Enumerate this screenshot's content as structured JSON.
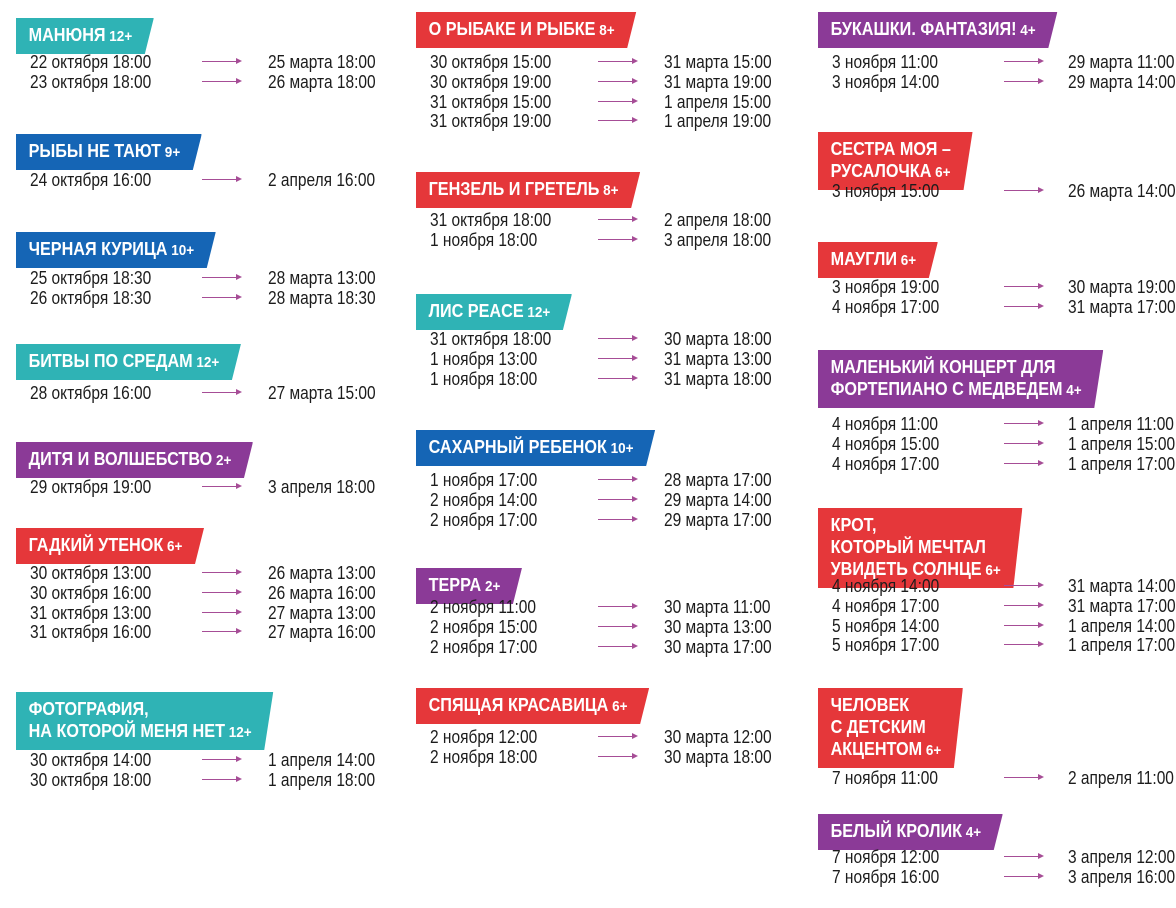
{
  "colors": {
    "teal": "#2fb3b5",
    "blue": "#1565b5",
    "purple": "#8b3a97",
    "red": "#e5373a",
    "arrow": "#a64d96"
  },
  "columns": [
    {
      "shows": [
        {
          "title": [
            "МАНЮНЯ"
          ],
          "age": "12+",
          "color": "teal",
          "rows": [
            [
              "22 октября 18:00",
              "25 марта 18:00"
            ],
            [
              "23 октября 18:00",
              "26 марта 18:00"
            ]
          ]
        },
        {
          "title": [
            "РЫБЫ НЕ ТАЮТ"
          ],
          "age": "9+",
          "color": "blue",
          "rows": [
            [
              "24 октября 16:00",
              "2 апреля 16:00"
            ]
          ]
        },
        {
          "title": [
            "ЧЕРНАЯ КУРИЦА"
          ],
          "age": "10+",
          "color": "blue",
          "rows": [
            [
              "25 октября 18:30",
              "28 марта 13:00"
            ],
            [
              "26 октября 18:30",
              "28 марта 18:30"
            ]
          ]
        },
        {
          "title": [
            "БИТВЫ ПО СРЕДАМ"
          ],
          "age": "12+",
          "color": "teal",
          "rows": [
            [
              "28 октября 16:00",
              "27 марта 15:00"
            ]
          ]
        },
        {
          "title": [
            "ДИТЯ И ВОЛШЕБСТВО"
          ],
          "age": "2+",
          "color": "purple",
          "rows": [
            [
              "29 октября 19:00",
              "3 апреля 18:00"
            ]
          ]
        },
        {
          "title": [
            "ГАДКИЙ УТЕНОК"
          ],
          "age": "6+",
          "color": "red",
          "rows": [
            [
              "30 октября 13:00",
              "26 марта 13:00"
            ],
            [
              "30 октября 16:00",
              "26 марта 16:00"
            ],
            [
              "31 октября 13:00",
              "27 марта 13:00"
            ],
            [
              "31 октября 16:00",
              "27 марта 16:00"
            ]
          ]
        },
        {
          "title": [
            "ФОТОГРАФИЯ,",
            "НА КОТОРОЙ  МЕНЯ НЕТ"
          ],
          "age": "12+",
          "color": "teal",
          "rows": [
            [
              "30 октября 14:00",
              "1 апреля 14:00"
            ],
            [
              "30 октября 18:00",
              "1 апреля 18:00"
            ]
          ]
        }
      ]
    },
    {
      "shows": [
        {
          "title": [
            "О РЫБАКЕ И РЫБКЕ"
          ],
          "age": "8+",
          "color": "red",
          "rows": [
            [
              "30 октября 15:00",
              "31 марта 15:00"
            ],
            [
              "30 октября 19:00",
              "31 марта 19:00"
            ],
            [
              "31 октября 15:00",
              "1 апреля 15:00"
            ],
            [
              "31 октября 19:00",
              "1 апреля 19:00"
            ]
          ]
        },
        {
          "title": [
            "ГЕНЗЕЛЬ И ГРЕТЕЛЬ"
          ],
          "age": "8+",
          "color": "red",
          "rows": [
            [
              "31 октября 18:00",
              "2 апреля 18:00"
            ],
            [
              "1 ноября 18:00",
              "3 апреля 18:00"
            ]
          ]
        },
        {
          "title": [
            "ЛИС PEACE"
          ],
          "age": "12+",
          "color": "teal",
          "rows": [
            [
              "31 октября 18:00",
              "30 марта 18:00"
            ],
            [
              "1 ноября 13:00",
              "31 марта 13:00"
            ],
            [
              "1 ноября 18:00",
              "31 марта 18:00"
            ]
          ]
        },
        {
          "title": [
            "САХАРНЫЙ РЕБЕНОК"
          ],
          "age": "10+",
          "color": "blue",
          "rows": [
            [
              "1 ноября 17:00",
              "28 марта 17:00"
            ],
            [
              "2 ноября 14:00",
              "29 марта 14:00"
            ],
            [
              "2 ноября 17:00",
              "29 марта 17:00"
            ]
          ]
        },
        {
          "title": [
            "ТЕРРА"
          ],
          "age": "2+",
          "color": "purple",
          "rows": [
            [
              "2 ноября 11:00",
              "30 марта 11:00"
            ],
            [
              "2 ноября 15:00",
              "30 марта 13:00"
            ],
            [
              "2 ноября 17:00",
              "30 марта 17:00"
            ]
          ]
        },
        {
          "title": [
            "СПЯЩАЯ КРАСАВИЦА"
          ],
          "age": "6+",
          "color": "red",
          "rows": [
            [
              "2 ноября 12:00",
              "30 марта 12:00"
            ],
            [
              "2 ноября 18:00",
              "30 марта 18:00"
            ]
          ]
        }
      ]
    },
    {
      "shows": [
        {
          "title": [
            "БУКАШКИ. ФАНТАЗИЯ!"
          ],
          "age": "4+",
          "color": "purple",
          "rows": [
            [
              "3 ноября 11:00",
              "29 марта 11:00"
            ],
            [
              "3 ноября 14:00",
              "29 марта 14:00"
            ]
          ]
        },
        {
          "title": [
            "СЕСТРА МОЯ –",
            "РУСАЛОЧКА"
          ],
          "age": "6+",
          "color": "red",
          "rows": [
            [
              "3 ноября 15:00",
              "26 марта 14:00"
            ]
          ]
        },
        {
          "title": [
            "МАУГЛИ"
          ],
          "age": "6+",
          "color": "red",
          "rows": [
            [
              "3 ноября 19:00",
              "30 марта 19:00"
            ],
            [
              "4 ноября 17:00",
              "31 марта 17:00"
            ]
          ]
        },
        {
          "title": [
            "МАЛЕНЬКИЙ КОНЦЕРТ ДЛЯ",
            "ФОРТЕПИАНО  С МЕДВЕДЕМ"
          ],
          "age": "4+",
          "color": "purple",
          "rows": [
            [
              "4 ноября 11:00",
              "1 апреля 11:00"
            ],
            [
              "4 ноября 15:00",
              "1 апреля 15:00"
            ],
            [
              "4 ноября 17:00",
              "1 апреля 17:00"
            ]
          ]
        },
        {
          "title": [
            "КРОТ,",
            "КОТОРЫЙ МЕЧТАЛ",
            "УВИДЕТЬ СОЛНЦЕ"
          ],
          "age": "6+",
          "color": "red",
          "rows": [
            [
              "4 ноября 14:00",
              "31 марта 14:00"
            ],
            [
              "4 ноября 17:00",
              "31 марта 17:00"
            ],
            [
              "5 ноября 14:00",
              "1 апреля 14:00"
            ],
            [
              "5 ноября 17:00",
              "1 апреля 17:00"
            ]
          ]
        },
        {
          "title": [
            "ЧЕЛОВЕК",
            "С ДЕТСКИМ",
            "АКЦЕНТОМ"
          ],
          "age": "6+",
          "color": "red",
          "rows": [
            [
              "7 ноября 11:00",
              "2 апреля 11:00"
            ]
          ]
        },
        {
          "title": [
            "БЕЛЫЙ КРОЛИК"
          ],
          "age": "4+",
          "color": "purple",
          "rows": [
            [
              "7 ноября 12:00",
              "3 апреля 12:00"
            ],
            [
              "7 ноября 16:00",
              "3 апреля 16:00"
            ]
          ]
        }
      ]
    }
  ]
}
